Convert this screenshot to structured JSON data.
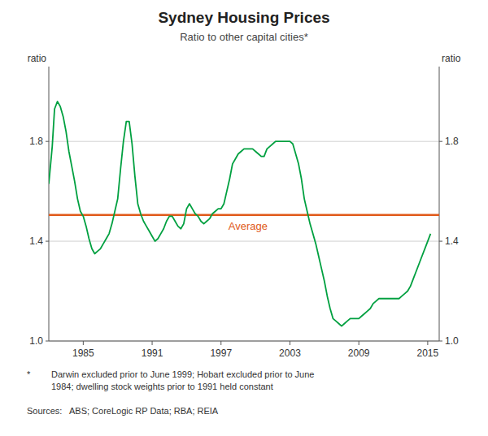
{
  "chart_data": {
    "type": "line",
    "title": "Sydney Housing Prices",
    "subtitle": "Ratio to other capital cities*",
    "y_label": "ratio",
    "y2_label": "ratio",
    "xlim": [
      1982.0,
      2016.0
    ],
    "xticks": [
      1985,
      1991,
      1997,
      2003,
      2009,
      2015
    ],
    "ylim": [
      1.0,
      2.1
    ],
    "yticks": [
      {
        "value": 1.0,
        "label": "1.0"
      },
      1.4,
      1.8
    ],
    "y2lim": [
      1.0,
      2.1
    ],
    "y2ticks": [
      {
        "value": 1.0,
        "label": "1.0"
      },
      1.4,
      1.8
    ],
    "grid": true,
    "color": "#00a040",
    "reference_lines": [
      {
        "value": 1.505,
        "label": "Average",
        "color": "#e05a1a"
      }
    ],
    "footnotes": [
      "*",
      "Darwin excluded prior to June 1999; Hobart excluded prior to June",
      "1984; dwelling stock weights prior to 1991 held constant"
    ],
    "sources": "Sources:   ABS; CoreLogic RP Data; RBA; REIA",
    "x": [
      1982.0,
      1982.3,
      1982.5,
      1982.75,
      1983.0,
      1983.25,
      1983.5,
      1983.75,
      1984.0,
      1984.25,
      1984.5,
      1984.75,
      1985.0,
      1985.25,
      1985.5,
      1985.75,
      1986.0,
      1986.25,
      1986.5,
      1986.75,
      1987.0,
      1987.25,
      1987.5,
      1987.75,
      1988.0,
      1988.25,
      1988.5,
      1988.75,
      1989.0,
      1989.25,
      1989.5,
      1989.75,
      1990.0,
      1990.25,
      1990.5,
      1990.75,
      1991.0,
      1991.25,
      1991.5,
      1991.75,
      1992.0,
      1992.25,
      1992.5,
      1992.75,
      1993.0,
      1993.25,
      1993.5,
      1993.75,
      1994.0,
      1994.25,
      1994.5,
      1994.75,
      1995.0,
      1995.25,
      1995.5,
      1995.75,
      1996.0,
      1996.25,
      1996.5,
      1996.75,
      1997.0,
      1997.25,
      1997.5,
      1997.75,
      1998.0,
      1998.25,
      1998.5,
      1998.75,
      1999.0,
      1999.25,
      1999.5,
      1999.75,
      2000.0,
      2000.25,
      2000.5,
      2000.75,
      2001.0,
      2001.25,
      2001.5,
      2001.75,
      2002.0,
      2002.25,
      2002.5,
      2002.75,
      2003.0,
      2003.25,
      2003.5,
      2003.75,
      2004.0,
      2004.25,
      2004.5,
      2004.75,
      2005.0,
      2005.25,
      2005.5,
      2005.75,
      2006.0,
      2006.25,
      2006.5,
      2006.75,
      2007.0,
      2007.25,
      2007.5,
      2007.75,
      2008.0,
      2008.25,
      2008.5,
      2008.75,
      2009.0,
      2009.25,
      2009.5,
      2009.75,
      2010.0,
      2010.25,
      2010.5,
      2010.75,
      2011.0,
      2011.25,
      2011.5,
      2011.75,
      2012.0,
      2012.25,
      2012.5,
      2012.75,
      2013.0,
      2013.25,
      2013.5,
      2013.75,
      2014.0,
      2014.25,
      2014.5,
      2014.75,
      2015.0,
      2015.25
    ],
    "values": [
      1.63,
      1.78,
      1.93,
      1.96,
      1.94,
      1.9,
      1.84,
      1.76,
      1.7,
      1.64,
      1.57,
      1.52,
      1.5,
      1.46,
      1.41,
      1.37,
      1.35,
      1.36,
      1.37,
      1.39,
      1.41,
      1.43,
      1.47,
      1.52,
      1.57,
      1.69,
      1.8,
      1.88,
      1.88,
      1.79,
      1.66,
      1.55,
      1.51,
      1.48,
      1.46,
      1.44,
      1.42,
      1.4,
      1.41,
      1.43,
      1.45,
      1.48,
      1.5,
      1.5,
      1.48,
      1.46,
      1.45,
      1.47,
      1.53,
      1.55,
      1.53,
      1.51,
      1.5,
      1.48,
      1.47,
      1.48,
      1.49,
      1.51,
      1.52,
      1.53,
      1.53,
      1.55,
      1.6,
      1.65,
      1.71,
      1.73,
      1.75,
      1.76,
      1.77,
      1.77,
      1.77,
      1.77,
      1.76,
      1.75,
      1.74,
      1.74,
      1.77,
      1.78,
      1.79,
      1.8,
      1.8,
      1.8,
      1.8,
      1.8,
      1.8,
      1.79,
      1.75,
      1.71,
      1.65,
      1.57,
      1.52,
      1.47,
      1.43,
      1.39,
      1.34,
      1.29,
      1.24,
      1.18,
      1.13,
      1.09,
      1.08,
      1.07,
      1.06,
      1.07,
      1.08,
      1.09,
      1.09,
      1.09,
      1.09,
      1.1,
      1.11,
      1.12,
      1.13,
      1.15,
      1.16,
      1.17,
      1.17,
      1.17,
      1.17,
      1.17,
      1.17,
      1.17,
      1.17,
      1.18,
      1.19,
      1.2,
      1.22,
      1.25,
      1.28,
      1.31,
      1.34,
      1.37,
      1.4,
      1.43
    ]
  }
}
